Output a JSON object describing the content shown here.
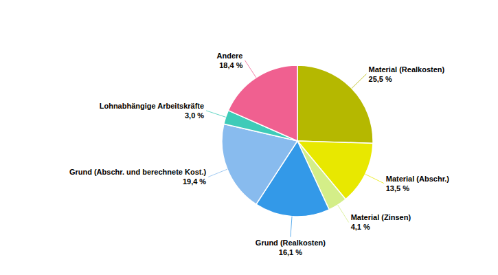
{
  "chart_data": {
    "type": "pie",
    "categories": [
      "Material (Realkosten)",
      "Material (Abschr.)",
      "Material (Zinsen)",
      "Grund (Realkosten)",
      "Grund (Abschr. und berechnete Kost.)",
      "Lohnabhängige Arbeitskräfte",
      "Andere"
    ],
    "values": [
      25.5,
      13.5,
      4.1,
      16.1,
      19.4,
      3.0,
      18.4
    ],
    "value_labels": [
      "25,5 %",
      "13,5 %",
      "4,1 %",
      "16,1 %",
      "19,4 %",
      "3,0 %",
      "18,4 %"
    ],
    "colors": [
      "#b5b800",
      "#e8e800",
      "#d4ee88",
      "#3399e8",
      "#88bbee",
      "#3ecbb8",
      "#f06090"
    ]
  }
}
